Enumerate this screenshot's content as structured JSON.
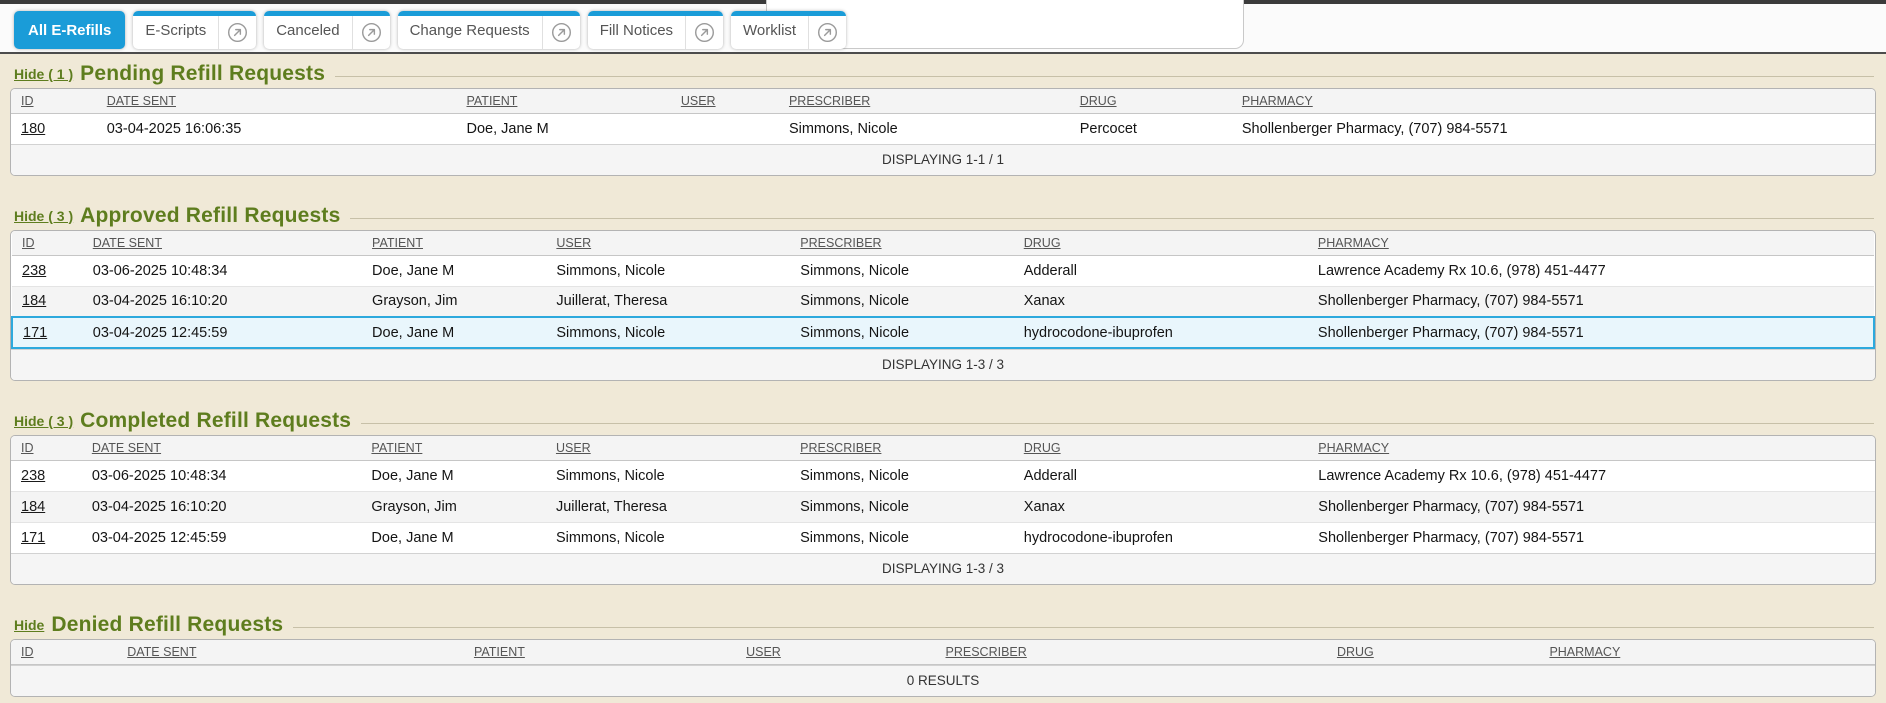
{
  "colors": {
    "accent_blue": "#1a9cd8",
    "section_green": "#5e7d1e",
    "page_beige": "#f0e9d7",
    "highlight_blue": "#2da9dd"
  },
  "tabs": [
    {
      "label": "All E-Refills",
      "active": true,
      "has_external_icon": false
    },
    {
      "label": "E-Scripts",
      "active": false,
      "has_external_icon": true
    },
    {
      "label": "Canceled",
      "active": false,
      "has_external_icon": true
    },
    {
      "label": "Change Requests",
      "active": false,
      "has_external_icon": true
    },
    {
      "label": "Fill Notices",
      "active": false,
      "has_external_icon": true
    },
    {
      "label": "Worklist",
      "active": false,
      "has_external_icon": true
    }
  ],
  "sections": [
    {
      "key": "pending",
      "hide_label": "Hide ( 1 )",
      "title": "Pending Refill Requests",
      "columns": [
        "ID",
        "DATE SENT",
        "PATIENT",
        "USER",
        "PRESCRIBER",
        "DRUG",
        "PHARMACY"
      ],
      "rows": [
        [
          "180",
          "03-04-2025 16:06:35",
          "Doe, Jane M",
          "",
          "Simmons, Nicole",
          "Percocet",
          "Shollenberger Pharmacy, (707) 984-5571"
        ]
      ],
      "highlight_row": null,
      "footer": "DISPLAYING 1-1 / 1"
    },
    {
      "key": "approved",
      "hide_label": "Hide ( 3 )",
      "title": "Approved Refill Requests",
      "columns": [
        "ID",
        "DATE SENT",
        "PATIENT",
        "USER",
        "PRESCRIBER",
        "DRUG",
        "PHARMACY"
      ],
      "rows": [
        [
          "238",
          "03-06-2025 10:48:34",
          "Doe, Jane M",
          "Simmons, Nicole",
          "Simmons, Nicole",
          "Adderall",
          "Lawrence Academy Rx 10.6, (978) 451-4477"
        ],
        [
          "184",
          "03-04-2025 16:10:20",
          "Grayson, Jim",
          "Juillerat, Theresa",
          "Simmons, Nicole",
          "Xanax",
          "Shollenberger Pharmacy, (707) 984-5571"
        ],
        [
          "171",
          "03-04-2025 12:45:59",
          "Doe, Jane M",
          "Simmons, Nicole",
          "Simmons, Nicole",
          "hydrocodone-ibuprofen",
          "Shollenberger Pharmacy, (707) 984-5571"
        ]
      ],
      "highlight_row": 2,
      "footer": "DISPLAYING 1-3 / 3"
    },
    {
      "key": "completed",
      "hide_label": "Hide ( 3 )",
      "title": "Completed Refill Requests",
      "columns": [
        "ID",
        "DATE SENT",
        "PATIENT",
        "USER",
        "PRESCRIBER",
        "DRUG",
        "PHARMACY"
      ],
      "rows": [
        [
          "238",
          "03-06-2025 10:48:34",
          "Doe, Jane M",
          "Simmons, Nicole",
          "Simmons, Nicole",
          "Adderall",
          "Lawrence Academy Rx 10.6, (978) 451-4477"
        ],
        [
          "184",
          "03-04-2025 16:10:20",
          "Grayson, Jim",
          "Juillerat, Theresa",
          "Simmons, Nicole",
          "Xanax",
          "Shollenberger Pharmacy, (707) 984-5571"
        ],
        [
          "171",
          "03-04-2025 12:45:59",
          "Doe, Jane M",
          "Simmons, Nicole",
          "Simmons, Nicole",
          "hydrocodone-ibuprofen",
          "Shollenberger Pharmacy, (707) 984-5571"
        ]
      ],
      "highlight_row": null,
      "footer": "DISPLAYING 1-3 / 3"
    },
    {
      "key": "denied",
      "hide_label": "Hide",
      "title": "Denied Refill Requests",
      "columns": [
        "ID",
        "DATE SENT",
        "PATIENT",
        "USER",
        "PRESCRIBER",
        "DRUG",
        "PHARMACY"
      ],
      "rows": [],
      "highlight_row": null,
      "footer": "0 RESULTS"
    }
  ]
}
